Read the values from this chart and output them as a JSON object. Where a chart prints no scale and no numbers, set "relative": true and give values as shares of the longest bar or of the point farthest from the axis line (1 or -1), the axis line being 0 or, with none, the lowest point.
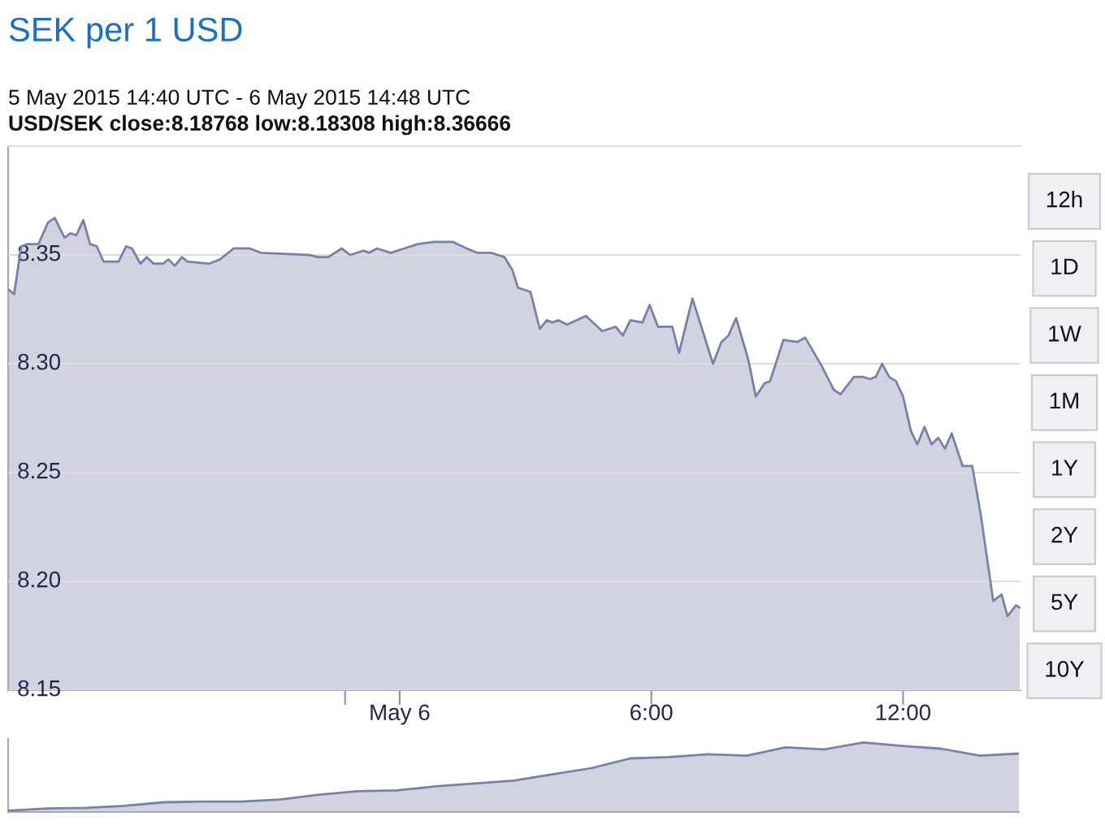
{
  "chart_data": [
    {
      "type": "area",
      "title": "SEK per 1 USD",
      "subtitle": "5 May 2015 14:40 UTC - 6 May 2015 14:48 UTC",
      "annotations": [
        "USD/SEK close:8.18768 low:8.18308 high:8.36666",
        "12h",
        "1D",
        "1W",
        "1M",
        "1Y",
        "2Y",
        "5Y",
        "10Y"
      ],
      "x": [
        -9.32,
        -9.19,
        -9.02,
        -8.87,
        -8.61,
        -8.38,
        -8.22,
        -8.12,
        -7.99,
        -7.84,
        -7.71,
        -7.54,
        -7.38,
        -7.22,
        -7.06,
        -6.7,
        -6.52,
        -6.38,
        -6.18,
        -6.03,
        -5.86,
        -5.64,
        -5.51,
        -5.36,
        -5.19,
        -5.06,
        -4.54,
        -4.28,
        -3.96,
        -3.57,
        -3.31,
        -2.15,
        -1.96,
        -1.7,
        -1.38,
        -1.18,
        -0.86,
        -0.73,
        -0.54,
        -0.21,
        0.11,
        0.43,
        0.82,
        1.27,
        1.6,
        1.85,
        2.18,
        2.5,
        2.69,
        2.82,
        3.12,
        3.34,
        3.51,
        3.64,
        3.79,
        3.99,
        4.44,
        4.83,
        5.15,
        5.32,
        5.5,
        5.79,
        5.96,
        6.16,
        6.5,
        6.66,
        6.98,
        7.47,
        7.67,
        7.84,
        8.02,
        8.31,
        8.49,
        8.7,
        8.83,
        9.15,
        9.48,
        9.67,
        10.06,
        10.35,
        10.51,
        10.83,
        11.03,
        11.22,
        11.35,
        11.5,
        11.67,
        11.83,
        12.0,
        12.19,
        12.34,
        12.51,
        12.68,
        12.84,
        13.0,
        13.16,
        13.42,
        13.65,
        13.85,
        14.15,
        14.35,
        14.49,
        14.69,
        14.78
      ],
      "series": [
        {
          "color": "#7b80a8",
          "values": [
            8.334,
            8.332,
            8.354,
            8.355,
            8.355,
            8.365,
            8.367,
            8.363,
            8.358,
            8.36,
            8.359,
            8.366,
            8.355,
            8.354,
            8.347,
            8.347,
            8.354,
            8.353,
            8.346,
            8.349,
            8.346,
            8.346,
            8.348,
            8.345,
            8.349,
            8.347,
            8.346,
            8.348,
            8.353,
            8.353,
            8.351,
            8.35,
            8.349,
            8.349,
            8.353,
            8.35,
            8.352,
            8.351,
            8.353,
            8.351,
            8.353,
            8.355,
            8.356,
            8.356,
            8.353,
            8.351,
            8.351,
            8.349,
            8.343,
            8.335,
            8.333,
            8.316,
            8.32,
            8.319,
            8.32,
            8.318,
            8.322,
            8.315,
            8.317,
            8.313,
            8.32,
            8.319,
            8.327,
            8.317,
            8.317,
            8.305,
            8.33,
            8.3,
            8.31,
            8.313,
            8.321,
            8.302,
            8.285,
            8.291,
            8.292,
            8.311,
            8.31,
            8.312,
            8.299,
            8.288,
            8.286,
            8.294,
            8.294,
            8.293,
            8.294,
            8.3,
            8.294,
            8.292,
            8.285,
            8.269,
            8.263,
            8.271,
            8.263,
            8.266,
            8.261,
            8.268,
            8.253,
            8.253,
            8.231,
            8.191,
            8.194,
            8.184,
            8.189,
            8.188
          ]
        }
      ],
      "xlim": [
        -9.333,
        14.8
      ],
      "ylim": [
        8.15,
        8.4
      ],
      "xticks": [
        {
          "value": -1.3,
          "label": null
        },
        {
          "value": 0,
          "label": "May 6"
        },
        {
          "value": 6,
          "label": "6:00"
        },
        {
          "value": 12,
          "label": "12:00"
        }
      ],
      "yticks": [
        {
          "value": 8.15,
          "label": "8.15"
        },
        {
          "value": 8.2,
          "label": "8.20"
        },
        {
          "value": 8.25,
          "label": "8.25"
        },
        {
          "value": 8.3,
          "label": "8.30"
        },
        {
          "value": 8.35,
          "label": "8.35"
        }
      ],
      "grid": "y"
    },
    {
      "type": "area",
      "relative": true,
      "categories": [
        null,
        null,
        null,
        null,
        null,
        null,
        null,
        null,
        null,
        null,
        null,
        null,
        null,
        null,
        null,
        null,
        null,
        null,
        null,
        null,
        null,
        null,
        null,
        null,
        null,
        null,
        null
      ],
      "series": [
        {
          "color": "#7b80a8",
          "values": [
            0.02,
            0.05,
            0.06,
            0.09,
            0.14,
            0.15,
            0.15,
            0.18,
            0.25,
            0.3,
            0.31,
            0.37,
            0.41,
            0.45,
            0.54,
            0.63,
            0.77,
            0.79,
            0.83,
            0.81,
            0.93,
            0.9,
            1.0,
            0.95,
            0.91,
            0.81,
            0.84
          ]
        }
      ]
    }
  ]
}
